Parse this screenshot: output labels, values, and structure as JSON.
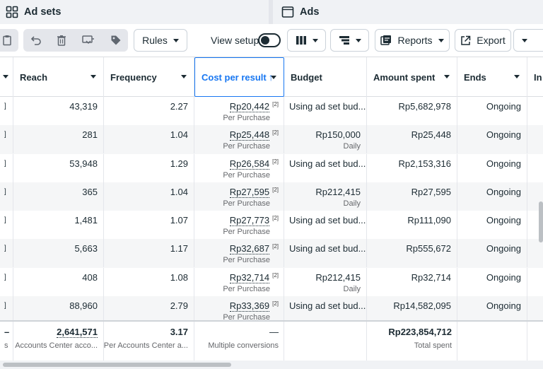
{
  "tabs": [
    {
      "label": "Ad sets",
      "icon": "grid-icon"
    },
    {
      "label": "Ads",
      "icon": "ad-frame-icon"
    }
  ],
  "toolbar": {
    "rules_label": "Rules",
    "view_setup_label": "View setup",
    "reports_label": "Reports",
    "export_label": "Export"
  },
  "columns": [
    {
      "label": "Reach"
    },
    {
      "label": "Frequency"
    },
    {
      "label": "Cost per result",
      "sort": "↑"
    },
    {
      "label": "Budget"
    },
    {
      "label": "Amount spent"
    },
    {
      "label": "Ends"
    },
    {
      "label": "In"
    }
  ],
  "rows": [
    {
      "reach": "43,319",
      "frequency": "2.27",
      "cost": "Rp20,442",
      "cost_sub": "Per Purchase",
      "budget": "Using ad set bud...",
      "budget_sub": "",
      "spent": "Rp5,682,978",
      "ends": "Ongoing"
    },
    {
      "reach": "281",
      "frequency": "1.04",
      "cost": "Rp25,448",
      "cost_sub": "Per Purchase",
      "budget": "Rp150,000",
      "budget_sub": "Daily",
      "spent": "Rp25,448",
      "ends": "Ongoing"
    },
    {
      "reach": "53,948",
      "frequency": "1.29",
      "cost": "Rp26,584",
      "cost_sub": "Per Purchase",
      "budget": "Using ad set bud...",
      "budget_sub": "",
      "spent": "Rp2,153,316",
      "ends": "Ongoing"
    },
    {
      "reach": "365",
      "frequency": "1.04",
      "cost": "Rp27,595",
      "cost_sub": "Per Purchase",
      "budget": "Rp212,415",
      "budget_sub": "Daily",
      "spent": "Rp27,595",
      "ends": "Ongoing"
    },
    {
      "reach": "1,481",
      "frequency": "1.07",
      "cost": "Rp27,773",
      "cost_sub": "Per Purchase",
      "budget": "Using ad set bud...",
      "budget_sub": "",
      "spent": "Rp111,090",
      "ends": "Ongoing"
    },
    {
      "reach": "5,663",
      "frequency": "1.17",
      "cost": "Rp32,687",
      "cost_sub": "Per Purchase",
      "budget": "Using ad set bud...",
      "budget_sub": "",
      "spent": "Rp555,672",
      "ends": "Ongoing"
    },
    {
      "reach": "408",
      "frequency": "1.08",
      "cost": "Rp32,714",
      "cost_sub": "Per Purchase",
      "budget": "Rp212,415",
      "budget_sub": "Daily",
      "spent": "Rp32,714",
      "ends": "Ongoing"
    },
    {
      "reach": "88,960",
      "frequency": "2.79",
      "cost": "Rp33,369",
      "cost_sub": "Per Purchase",
      "budget": "Using ad set bud...",
      "budget_sub": "",
      "spent": "Rp14,582,095",
      "ends": "Ongoing"
    }
  ],
  "footnote_marker": "[2]",
  "totals": {
    "left_sub": "s",
    "reach": "2,641,571",
    "reach_sub": "Accounts Center acco...",
    "frequency": "3.17",
    "frequency_sub": "Per Accounts Center a...",
    "cost": "—",
    "cost_sub": "Multiple conversions",
    "spent": "Rp223,854,712",
    "spent_sub": "Total spent"
  }
}
